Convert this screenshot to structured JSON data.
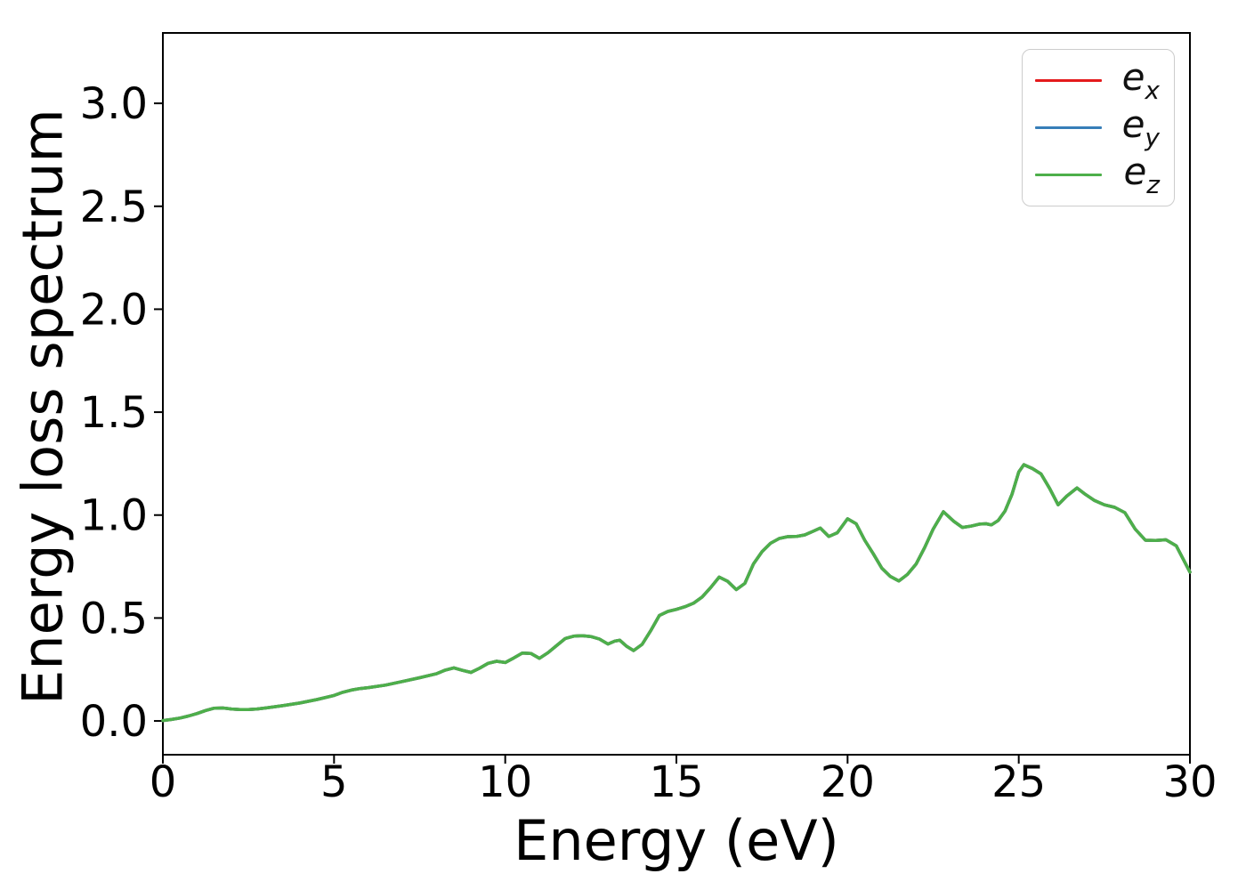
{
  "figure": {
    "background": "#ffffff",
    "spine_color": "#000000"
  },
  "legend": {
    "position": "upper right",
    "items": [
      {
        "main": "e",
        "sub": "x"
      },
      {
        "main": "e",
        "sub": "y"
      },
      {
        "main": "e",
        "sub": "z"
      }
    ]
  },
  "chart_data": {
    "type": "line",
    "title": "",
    "xlabel": "Energy (eV)",
    "ylabel": "Energy loss spectrum",
    "xlim": [
      0,
      30
    ],
    "ylim": [
      -0.164,
      3.342
    ],
    "x_ticks": [
      0,
      5,
      10,
      15,
      20,
      25,
      30
    ],
    "y_ticks": [
      0.0,
      0.5,
      1.0,
      1.5,
      2.0,
      2.5,
      3.0
    ],
    "grid": false,
    "legend_position": "upper right",
    "series": [
      {
        "name": "e_x",
        "color": "#e41a1c"
      },
      {
        "name": "e_y",
        "color": "#377eb8"
      },
      {
        "name": "e_z",
        "color": "#4daf4a"
      }
    ],
    "values_note": "All three series overlap exactly; the shared 'values' array applies to each series (only e_z, drawn last, is visible).",
    "x": [
      0,
      0.25,
      0.5,
      0.75,
      1,
      1.25,
      1.5,
      1.75,
      2,
      2.25,
      2.5,
      2.75,
      3,
      3.5,
      4,
      4.5,
      5,
      5.25,
      5.5,
      5.75,
      6,
      6.5,
      7,
      7.5,
      8,
      8.25,
      8.5,
      8.75,
      9,
      9.25,
      9.5,
      9.75,
      10,
      10.25,
      10.5,
      10.75,
      11,
      11.25,
      11.5,
      11.75,
      12,
      12.25,
      12.5,
      12.75,
      13,
      13.2,
      13.35,
      13.55,
      13.75,
      14,
      14.25,
      14.5,
      14.75,
      15,
      15.25,
      15.5,
      15.75,
      16,
      16.25,
      16.5,
      16.75,
      17,
      17.25,
      17.5,
      17.75,
      18,
      18.25,
      18.5,
      18.75,
      19,
      19.2,
      19.45,
      19.7,
      20,
      20.25,
      20.5,
      20.75,
      21,
      21.25,
      21.5,
      21.75,
      22,
      22.25,
      22.5,
      22.8,
      23.1,
      23.35,
      23.6,
      23.85,
      24.05,
      24.2,
      24.4,
      24.6,
      24.8,
      25,
      25.15,
      25.4,
      25.65,
      25.9,
      26.15,
      26.4,
      26.7,
      26.95,
      27.2,
      27.5,
      27.8,
      28.1,
      28.4,
      28.7,
      29,
      29.3,
      29.6,
      30
    ],
    "values": [
      0.002,
      0.007,
      0.014,
      0.024,
      0.036,
      0.051,
      0.062,
      0.063,
      0.058,
      0.055,
      0.055,
      0.058,
      0.063,
      0.074,
      0.087,
      0.104,
      0.124,
      0.139,
      0.15,
      0.157,
      0.162,
      0.174,
      0.192,
      0.21,
      0.23,
      0.247,
      0.258,
      0.246,
      0.236,
      0.256,
      0.28,
      0.29,
      0.284,
      0.306,
      0.33,
      0.328,
      0.304,
      0.332,
      0.366,
      0.4,
      0.412,
      0.414,
      0.41,
      0.398,
      0.374,
      0.388,
      0.392,
      0.362,
      0.342,
      0.372,
      0.438,
      0.512,
      0.532,
      0.542,
      0.555,
      0.572,
      0.602,
      0.648,
      0.699,
      0.678,
      0.638,
      0.668,
      0.762,
      0.822,
      0.863,
      0.886,
      0.895,
      0.896,
      0.904,
      0.922,
      0.937,
      0.896,
      0.914,
      0.982,
      0.958,
      0.878,
      0.812,
      0.742,
      0.702,
      0.68,
      0.712,
      0.762,
      0.842,
      0.932,
      1.016,
      0.97,
      0.94,
      0.946,
      0.956,
      0.958,
      0.952,
      0.974,
      1.02,
      1.1,
      1.21,
      1.245,
      1.226,
      1.2,
      1.13,
      1.05,
      1.092,
      1.132,
      1.1,
      1.072,
      1.05,
      1.038,
      1.012,
      0.932,
      0.878,
      0.877,
      0.88,
      0.851,
      0.723
    ]
  }
}
